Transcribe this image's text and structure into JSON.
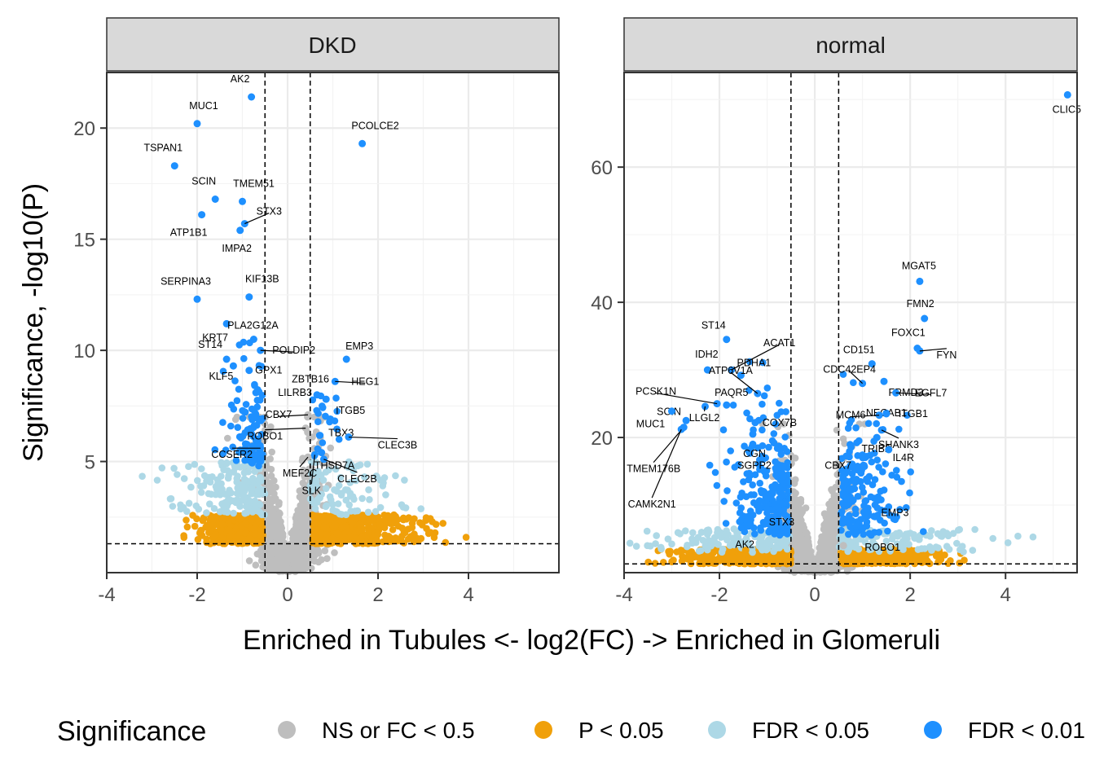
{
  "chart_data": [
    {
      "type": "scatter",
      "panel": "DKD",
      "xlim": [
        -4,
        6
      ],
      "ylim": [
        0,
        22.5
      ],
      "x_ticks": [
        -4,
        -2,
        0,
        2,
        4
      ],
      "y_ticks": [
        5,
        10,
        15,
        20
      ],
      "fc_cutoff": [
        -0.5,
        0.5
      ],
      "p_cutoff_y": 1.3,
      "labeled_points": [
        {
          "gene": "MUC1",
          "x": -2.0,
          "y": 20.2,
          "cls": "FDR < 0.01"
        },
        {
          "gene": "AK2",
          "x": -0.8,
          "y": 21.4,
          "cls": "FDR < 0.01"
        },
        {
          "gene": "PCOLCE2",
          "x": 1.65,
          "y": 19.3,
          "cls": "FDR < 0.01"
        },
        {
          "gene": "TSPAN1",
          "x": -2.5,
          "y": 18.3,
          "cls": "FDR < 0.01"
        },
        {
          "gene": "SCIN",
          "x": -1.6,
          "y": 16.8,
          "cls": "FDR < 0.01"
        },
        {
          "gene": "TMEM51",
          "x": -1.0,
          "y": 16.7,
          "cls": "FDR < 0.01"
        },
        {
          "gene": "STX3",
          "x": -0.95,
          "y": 15.7,
          "cls": "FDR < 0.01"
        },
        {
          "gene": "ATP1B1",
          "x": -1.9,
          "y": 16.1,
          "cls": "FDR < 0.01"
        },
        {
          "gene": "IMPA2",
          "x": -1.05,
          "y": 15.4,
          "cls": "FDR < 0.01"
        },
        {
          "gene": "SERPINA3",
          "x": -2.0,
          "y": 12.3,
          "cls": "FDR < 0.01"
        },
        {
          "gene": "KIF13B",
          "x": -0.85,
          "y": 12.4,
          "cls": "FDR < 0.01"
        },
        {
          "gene": "KRT7",
          "x": -1.35,
          "y": 11.2,
          "cls": "FDR < 0.01"
        },
        {
          "gene": "PLA2G12A",
          "x": -0.75,
          "y": 10.5,
          "cls": "FDR < 0.01"
        },
        {
          "gene": "POLDIP2",
          "x": -0.6,
          "y": 10.0,
          "cls": "FDR < 0.01"
        },
        {
          "gene": "ST14",
          "x": -1.35,
          "y": 9.6,
          "cls": "FDR < 0.01"
        },
        {
          "gene": "EMP3",
          "x": 1.3,
          "y": 9.6,
          "cls": "FDR < 0.01"
        },
        {
          "gene": "KLF5",
          "x": -1.2,
          "y": 9.3,
          "cls": "FDR < 0.01"
        },
        {
          "gene": "GPX1",
          "x": -0.85,
          "y": 9.1,
          "cls": "FDR < 0.01"
        },
        {
          "gene": "ZBTB16",
          "x": 0.65,
          "y": 8.0,
          "cls": "FDR < 0.01"
        },
        {
          "gene": "HEG1",
          "x": 1.05,
          "y": 8.6,
          "cls": "FDR < 0.01"
        },
        {
          "gene": "LILRB3",
          "x": -0.7,
          "y": 8.1,
          "cls": "FDR < 0.01"
        },
        {
          "gene": "ITGB5",
          "x": 0.85,
          "y": 7.8,
          "cls": "FDR < 0.01"
        },
        {
          "gene": "CBX7",
          "x": 0.45,
          "y": 7.1,
          "cls": "Not significant"
        },
        {
          "gene": "TBX3",
          "x": 0.95,
          "y": 6.9,
          "cls": "FDR < 0.01"
        },
        {
          "gene": "ROBO1",
          "x": 0.4,
          "y": 6.5,
          "cls": "Not significant"
        },
        {
          "gene": "CLEC3B",
          "x": 1.35,
          "y": 6.1,
          "cls": "FDR < 0.01"
        },
        {
          "gene": "THSD7A",
          "x": 0.75,
          "y": 5.4,
          "cls": "FDR < 0.01"
        },
        {
          "gene": "CCSER2",
          "x": -0.6,
          "y": 5.6,
          "cls": "FDR < 0.01"
        },
        {
          "gene": "MEF2C",
          "x": 0.45,
          "y": 5.2,
          "cls": "Not significant"
        },
        {
          "gene": "CLEC2B",
          "x": 0.8,
          "y": 5.1,
          "cls": "FDR < 0.01"
        },
        {
          "gene": "SLK",
          "x": 0.6,
          "y": 5.3,
          "cls": "FDR < 0.01"
        }
      ]
    },
    {
      "type": "scatter",
      "panel": "normal",
      "xlim": [
        -4,
        5.5
      ],
      "ylim": [
        0,
        74
      ],
      "x_ticks": [
        -4,
        -2,
        0,
        2,
        4
      ],
      "y_ticks": [
        20,
        40,
        60
      ],
      "fc_cutoff": [
        -0.5,
        0.5
      ],
      "p_cutoff_y": 1.3,
      "labeled_points": [
        {
          "gene": "CLIC5",
          "x": 5.3,
          "y": 70.7,
          "cls": "FDR < 0.01"
        },
        {
          "gene": "MGAT5",
          "x": 2.2,
          "y": 43.1,
          "cls": "FDR < 0.01"
        },
        {
          "gene": "FMN2",
          "x": 2.3,
          "y": 37.6,
          "cls": "FDR < 0.01"
        },
        {
          "gene": "FOXC1",
          "x": 2.15,
          "y": 33.2,
          "cls": "FDR < 0.01"
        },
        {
          "gene": "FYN",
          "x": 2.2,
          "y": 32.8,
          "cls": "FDR < 0.01"
        },
        {
          "gene": "ST14",
          "x": -1.85,
          "y": 34.5,
          "cls": "FDR < 0.01"
        },
        {
          "gene": "ACAT1",
          "x": -1.75,
          "y": 30.0,
          "cls": "FDR < 0.01"
        },
        {
          "gene": "IDH2",
          "x": -2.25,
          "y": 30.0,
          "cls": "FDR < 0.01"
        },
        {
          "gene": "PDHA1",
          "x": -1.55,
          "y": 29.2,
          "cls": "FDR < 0.01"
        },
        {
          "gene": "CD151",
          "x": 1.2,
          "y": 30.9,
          "cls": "FDR < 0.01"
        },
        {
          "gene": "CDC42EP4",
          "x": 1.0,
          "y": 28.0,
          "cls": "FDR < 0.01"
        },
        {
          "gene": "PCSK1N",
          "x": -2.05,
          "y": 25.0,
          "cls": "FDR < 0.01"
        },
        {
          "gene": "PAQR5",
          "x": -1.85,
          "y": 24.8,
          "cls": "FDR < 0.01"
        },
        {
          "gene": "ATP6V1A",
          "x": -1.2,
          "y": 26.5,
          "cls": "FDR < 0.01"
        },
        {
          "gene": "FRMD3",
          "x": 1.45,
          "y": 28.3,
          "cls": "FDR < 0.01"
        },
        {
          "gene": "EGFL7",
          "x": 1.7,
          "y": 26.6,
          "cls": "FDR < 0.01"
        },
        {
          "gene": "NECAB1",
          "x": 1.5,
          "y": 23.6,
          "cls": "FDR < 0.01"
        },
        {
          "gene": "SCIN",
          "x": -2.7,
          "y": 22.5,
          "cls": "FDR < 0.01"
        },
        {
          "gene": "COX7B",
          "x": -1.25,
          "y": 22.2,
          "cls": "FDR < 0.01"
        },
        {
          "gene": "MUC1",
          "x": -3.0,
          "y": 23.9,
          "cls": "FDR < 0.01"
        },
        {
          "gene": "LLGL2",
          "x": -2.3,
          "y": 24.6,
          "cls": "FDR < 0.01"
        },
        {
          "gene": "MCM6",
          "x": 1.35,
          "y": 23.3,
          "cls": "FDR < 0.01"
        },
        {
          "gene": "ITGB1",
          "x": 1.5,
          "y": 23.5,
          "cls": "FDR < 0.01"
        },
        {
          "gene": "CGN",
          "x": -1.3,
          "y": 20.5,
          "cls": "FDR < 0.01"
        },
        {
          "gene": "TRIB2",
          "x": 1.3,
          "y": 20.0,
          "cls": "FDR < 0.01"
        },
        {
          "gene": "SHANK3",
          "x": 1.4,
          "y": 21.1,
          "cls": "FDR < 0.01"
        },
        {
          "gene": "TMEM176B",
          "x": -2.75,
          "y": 21.5,
          "cls": "FDR < 0.01"
        },
        {
          "gene": "SGPP2",
          "x": -1.3,
          "y": 19.0,
          "cls": "FDR < 0.01"
        },
        {
          "gene": "CAMK2N1",
          "x": -2.8,
          "y": 21.2,
          "cls": "FDR < 0.01"
        },
        {
          "gene": "IL4R",
          "x": 1.55,
          "y": 18.2,
          "cls": "FDR < 0.01"
        },
        {
          "gene": "CBX7",
          "x": 1.0,
          "y": 17.4,
          "cls": "FDR < 0.01"
        },
        {
          "gene": "STX3",
          "x": -0.9,
          "y": 8.2,
          "cls": "FDR < 0.01"
        },
        {
          "gene": "EMP3",
          "x": 1.1,
          "y": 9.1,
          "cls": "FDR < 0.01"
        },
        {
          "gene": "AK2",
          "x": -1.45,
          "y": 3.3,
          "cls": "P < 0.05"
        },
        {
          "gene": "ROBO1",
          "x": 0.6,
          "y": 4.0,
          "cls": "Not significant"
        }
      ]
    }
  ],
  "panels": {
    "dkd": {
      "strip": "DKD",
      "ytick_labels": [
        "5",
        "10",
        "15",
        "20"
      ],
      "xtick_labels": [
        "-4",
        "-2",
        "0",
        "2",
        "4"
      ]
    },
    "normal": {
      "strip": "normal",
      "ytick_labels": [
        "20",
        "40",
        "60"
      ],
      "xtick_labels": [
        "-4",
        "-2",
        "0",
        "2",
        "4"
      ]
    }
  },
  "axes": {
    "xlabel": "Enriched in Tubules <- log2(FC) -> Enriched in Glomeruli",
    "ylabel": "Significance, -log10(P)"
  },
  "legend": {
    "title": "Significance",
    "items": [
      {
        "label": "NS or FC < 0.5",
        "color": "#bebebe",
        "key": "Not significant"
      },
      {
        "label": "P < 0.05",
        "color": "#f0a00a",
        "key": "P < 0.05"
      },
      {
        "label": "FDR < 0.05",
        "color": "#add8e6",
        "key": "FDR < 0.05"
      },
      {
        "label": "FDR < 0.01",
        "color": "#1e90ff",
        "key": "FDR < 0.01"
      }
    ]
  },
  "colors": {
    "Not significant": "#bebebe",
    "P < 0.05": "#f0a00a",
    "FDR < 0.05": "#add8e6",
    "FDR < 0.01": "#1e90ff"
  }
}
